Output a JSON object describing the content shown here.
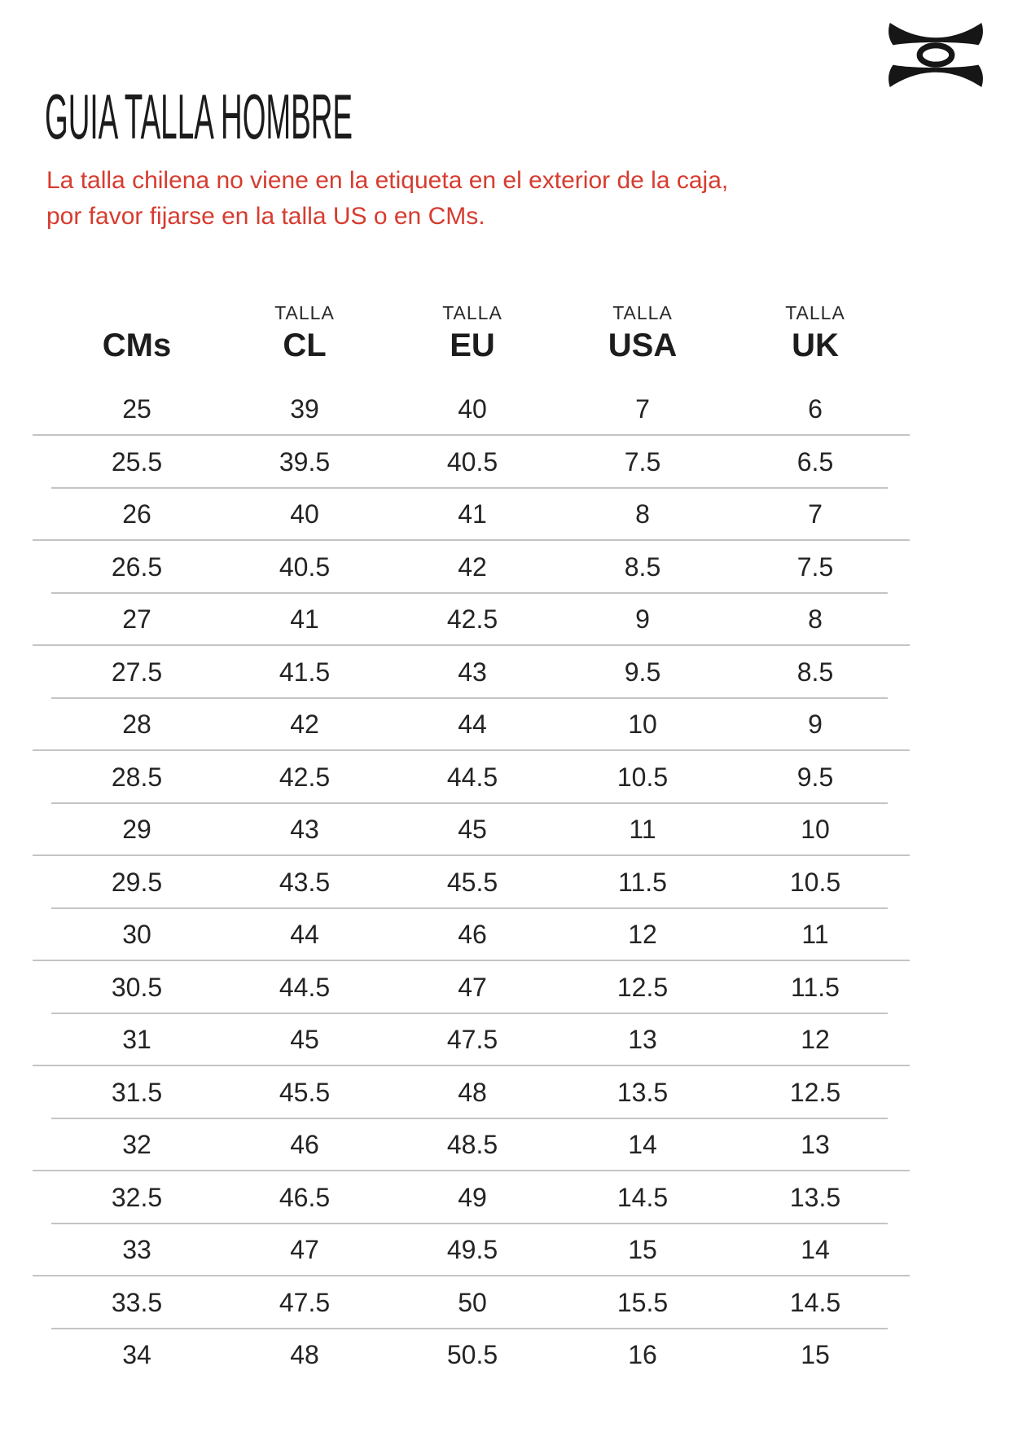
{
  "title": "GUIA TALLA HOMBRE",
  "brand": {
    "logo_icon": "under-armour-logo",
    "logo_color": "#161616"
  },
  "notice": {
    "line1": "La talla chilena no viene en la etiqueta en el exterior de la caja,",
    "line2": "por favor fijarse en la talla US o en CMs.",
    "color": "#d63c30"
  },
  "colors": {
    "text": "#242424",
    "heading": "#1d1d1d",
    "divider": "#c4c4c4",
    "background": "#ffffff"
  },
  "table": {
    "header": {
      "columns": [
        {
          "top": "",
          "main": "CMs"
        },
        {
          "top": "TALLA",
          "main": "CL"
        },
        {
          "top": "TALLA",
          "main": "EU"
        },
        {
          "top": "TALLA",
          "main": "USA"
        },
        {
          "top": "TALLA",
          "main": "UK"
        }
      ]
    },
    "rows": [
      [
        "25",
        "39",
        "40",
        "7",
        "6"
      ],
      [
        "25.5",
        "39.5",
        "40.5",
        "7.5",
        "6.5"
      ],
      [
        "26",
        "40",
        "41",
        "8",
        "7"
      ],
      [
        "26.5",
        "40.5",
        "42",
        "8.5",
        "7.5"
      ],
      [
        "27",
        "41",
        "42.5",
        "9",
        "8"
      ],
      [
        "27.5",
        "41.5",
        "43",
        "9.5",
        "8.5"
      ],
      [
        "28",
        "42",
        "44",
        "10",
        "9"
      ],
      [
        "28.5",
        "42.5",
        "44.5",
        "10.5",
        "9.5"
      ],
      [
        "29",
        "43",
        "45",
        "11",
        "10"
      ],
      [
        "29.5",
        "43.5",
        "45.5",
        "11.5",
        "10.5"
      ],
      [
        "30",
        "44",
        "46",
        "12",
        "11"
      ],
      [
        "30.5",
        "44.5",
        "47",
        "12.5",
        "11.5"
      ],
      [
        "31",
        "45",
        "47.5",
        "13",
        "12"
      ],
      [
        "31.5",
        "45.5",
        "48",
        "13.5",
        "12.5"
      ],
      [
        "32",
        "46",
        "48.5",
        "14",
        "13"
      ],
      [
        "32.5",
        "46.5",
        "49",
        "14.5",
        "13.5"
      ],
      [
        "33",
        "47",
        "49.5",
        "15",
        "14"
      ],
      [
        "33.5",
        "47.5",
        "50",
        "15.5",
        "14.5"
      ],
      [
        "34",
        "48",
        "50.5",
        "16",
        "15"
      ]
    ]
  }
}
